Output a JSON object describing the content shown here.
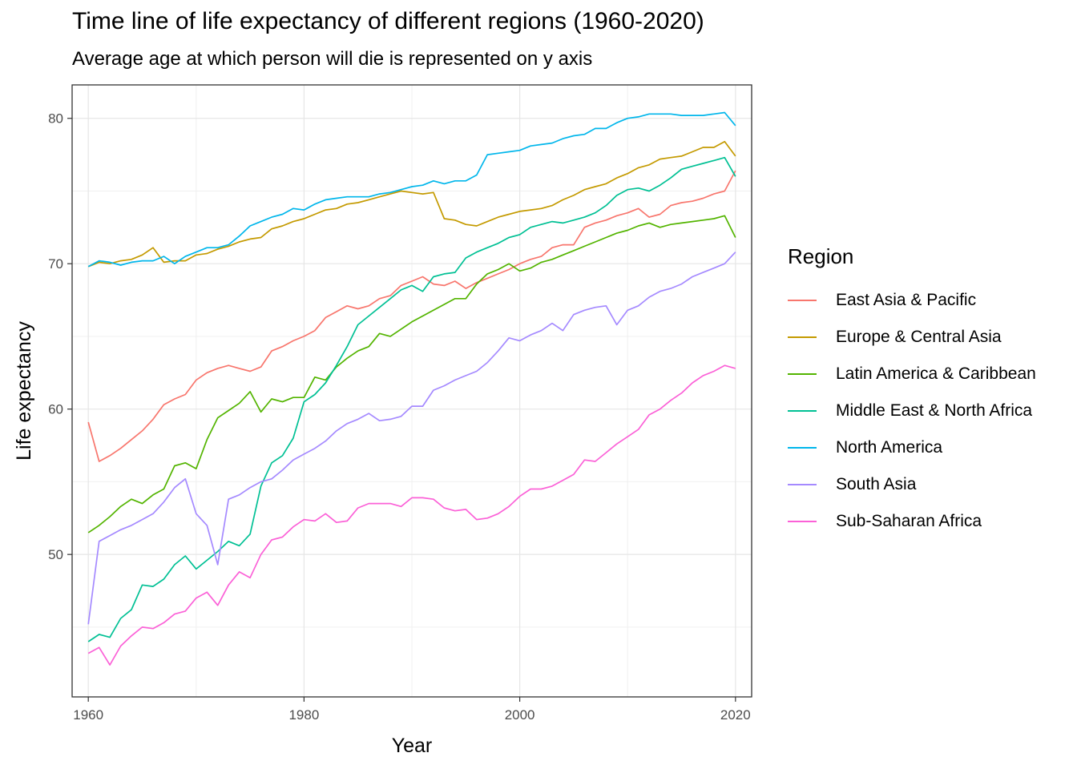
{
  "chart_data": {
    "type": "line",
    "title": "Time line of life expectancy of different regions (1960-2020)",
    "subtitle": "Average age at which person will die is represented on y axis",
    "xlabel": "Year",
    "ylabel": "Life expectancy",
    "xlim": [
      1958.5,
      2021.5
    ],
    "ylim": [
      40.2,
      82.3
    ],
    "x_ticks": [
      1960,
      1980,
      2000,
      2020
    ],
    "y_ticks": [
      50,
      60,
      70,
      80
    ],
    "grid": true,
    "legend": {
      "title": "Region",
      "position": "right"
    },
    "x": [
      1960,
      1961,
      1962,
      1963,
      1964,
      1965,
      1966,
      1967,
      1968,
      1969,
      1970,
      1971,
      1972,
      1973,
      1974,
      1975,
      1976,
      1977,
      1978,
      1979,
      1980,
      1981,
      1982,
      1983,
      1984,
      1985,
      1986,
      1987,
      1988,
      1989,
      1990,
      1991,
      1992,
      1993,
      1994,
      1995,
      1996,
      1997,
      1998,
      1999,
      2000,
      2001,
      2002,
      2003,
      2004,
      2005,
      2006,
      2007,
      2008,
      2009,
      2010,
      2011,
      2012,
      2013,
      2014,
      2015,
      2016,
      2017,
      2018,
      2019,
      2020
    ],
    "series": [
      {
        "name": "East Asia & Pacific",
        "color": "#F8766D",
        "values": [
          59.1,
          56.4,
          56.8,
          57.3,
          57.9,
          58.5,
          59.3,
          60.3,
          60.7,
          61.0,
          62.0,
          62.5,
          62.8,
          63.0,
          62.8,
          62.6,
          62.9,
          64.0,
          64.3,
          64.7,
          65.0,
          65.4,
          66.3,
          66.7,
          67.1,
          66.9,
          67.1,
          67.6,
          67.8,
          68.5,
          68.8,
          69.1,
          68.6,
          68.5,
          68.8,
          68.3,
          68.7,
          69.0,
          69.3,
          69.6,
          70.0,
          70.3,
          70.5,
          71.1,
          71.3,
          71.3,
          72.5,
          72.8,
          73.0,
          73.3,
          73.5,
          73.8,
          73.2,
          73.4,
          74.0,
          74.2,
          74.3,
          74.5,
          74.8,
          75.0,
          76.4
        ]
      },
      {
        "name": "Europe & Central Asia",
        "color": "#C49A00",
        "values": [
          69.8,
          70.1,
          70.0,
          70.2,
          70.3,
          70.6,
          71.1,
          70.1,
          70.2,
          70.2,
          70.6,
          70.7,
          71.0,
          71.2,
          71.5,
          71.7,
          71.8,
          72.4,
          72.6,
          72.9,
          73.1,
          73.4,
          73.7,
          73.8,
          74.1,
          74.2,
          74.4,
          74.6,
          74.8,
          75.0,
          74.9,
          74.8,
          74.9,
          73.1,
          73.0,
          72.7,
          72.6,
          72.9,
          73.2,
          73.4,
          73.6,
          73.7,
          73.8,
          74.0,
          74.4,
          74.7,
          75.1,
          75.3,
          75.5,
          75.9,
          76.2,
          76.6,
          76.8,
          77.2,
          77.3,
          77.4,
          77.7,
          78.0,
          78.0,
          78.4,
          77.4
        ]
      },
      {
        "name": "Latin America & Caribbean",
        "color": "#53B400",
        "values": [
          51.5,
          52.0,
          52.6,
          53.3,
          53.8,
          53.5,
          54.1,
          54.5,
          56.1,
          56.3,
          55.9,
          57.9,
          59.4,
          59.9,
          60.4,
          61.2,
          59.8,
          60.7,
          60.5,
          60.8,
          60.8,
          62.2,
          62.0,
          62.9,
          63.5,
          64.0,
          64.3,
          65.2,
          65.0,
          65.5,
          66.0,
          66.4,
          66.8,
          67.2,
          67.6,
          67.6,
          68.6,
          69.3,
          69.6,
          70.0,
          69.5,
          69.7,
          70.1,
          70.3,
          70.6,
          70.9,
          71.2,
          71.5,
          71.8,
          72.1,
          72.3,
          72.6,
          72.8,
          72.5,
          72.7,
          72.8,
          72.9,
          73.0,
          73.1,
          73.3,
          71.8
        ]
      },
      {
        "name": "Middle East & North Africa",
        "color": "#00C094",
        "values": [
          44.0,
          44.5,
          44.3,
          45.6,
          46.2,
          47.9,
          47.8,
          48.3,
          49.3,
          49.9,
          49.0,
          49.6,
          50.2,
          50.9,
          50.6,
          51.4,
          54.7,
          56.3,
          56.8,
          58.0,
          60.5,
          61.0,
          61.8,
          63.0,
          64.3,
          65.8,
          66.4,
          67.0,
          67.6,
          68.2,
          68.5,
          68.1,
          69.1,
          69.3,
          69.4,
          70.4,
          70.8,
          71.1,
          71.4,
          71.8,
          72.0,
          72.5,
          72.7,
          72.9,
          72.8,
          73.0,
          73.2,
          73.5,
          74.0,
          74.7,
          75.1,
          75.2,
          75.0,
          75.4,
          75.9,
          76.5,
          76.7,
          76.9,
          77.1,
          77.3,
          76.0
        ]
      },
      {
        "name": "North America",
        "color": "#00B6EB",
        "values": [
          69.8,
          70.2,
          70.1,
          69.9,
          70.1,
          70.2,
          70.2,
          70.5,
          70.0,
          70.5,
          70.8,
          71.1,
          71.1,
          71.3,
          71.9,
          72.6,
          72.9,
          73.2,
          73.4,
          73.8,
          73.7,
          74.1,
          74.4,
          74.5,
          74.6,
          74.6,
          74.6,
          74.8,
          74.9,
          75.1,
          75.3,
          75.4,
          75.7,
          75.5,
          75.7,
          75.7,
          76.1,
          77.5,
          77.6,
          77.7,
          77.8,
          78.1,
          78.2,
          78.3,
          78.6,
          78.8,
          78.9,
          79.3,
          79.3,
          79.7,
          80.0,
          80.1,
          80.3,
          80.3,
          80.3,
          80.2,
          80.2,
          80.2,
          80.3,
          80.4,
          79.5
        ]
      },
      {
        "name": "South Asia",
        "color": "#A58AFF",
        "values": [
          45.2,
          50.9,
          51.3,
          51.7,
          52.0,
          52.4,
          52.8,
          53.6,
          54.6,
          55.2,
          52.8,
          52.0,
          49.3,
          53.8,
          54.1,
          54.6,
          55.0,
          55.2,
          55.8,
          56.5,
          56.9,
          57.3,
          57.8,
          58.5,
          59.0,
          59.3,
          59.7,
          59.2,
          59.3,
          59.5,
          60.2,
          60.2,
          61.3,
          61.6,
          62.0,
          62.3,
          62.6,
          63.2,
          64.0,
          64.9,
          64.7,
          65.1,
          65.4,
          65.9,
          65.4,
          66.5,
          66.8,
          67.0,
          67.1,
          65.8,
          66.8,
          67.1,
          67.7,
          68.1,
          68.3,
          68.6,
          69.1,
          69.4,
          69.7,
          70.0,
          70.8
        ]
      },
      {
        "name": "Sub-Saharan Africa",
        "color": "#FB61D7",
        "values": [
          43.2,
          43.6,
          42.4,
          43.7,
          44.4,
          45.0,
          44.9,
          45.3,
          45.9,
          46.1,
          47.0,
          47.4,
          46.5,
          47.9,
          48.8,
          48.4,
          50.0,
          51.0,
          51.2,
          51.9,
          52.4,
          52.3,
          52.8,
          52.2,
          52.3,
          53.2,
          53.5,
          53.5,
          53.5,
          53.3,
          53.9,
          53.9,
          53.8,
          53.2,
          53.0,
          53.1,
          52.4,
          52.5,
          52.8,
          53.3,
          54.0,
          54.5,
          54.5,
          54.7,
          55.1,
          55.5,
          56.5,
          56.4,
          57.0,
          57.6,
          58.1,
          58.6,
          59.6,
          60.0,
          60.6,
          61.1,
          61.8,
          62.3,
          62.6,
          63.0,
          62.8
        ]
      }
    ]
  }
}
